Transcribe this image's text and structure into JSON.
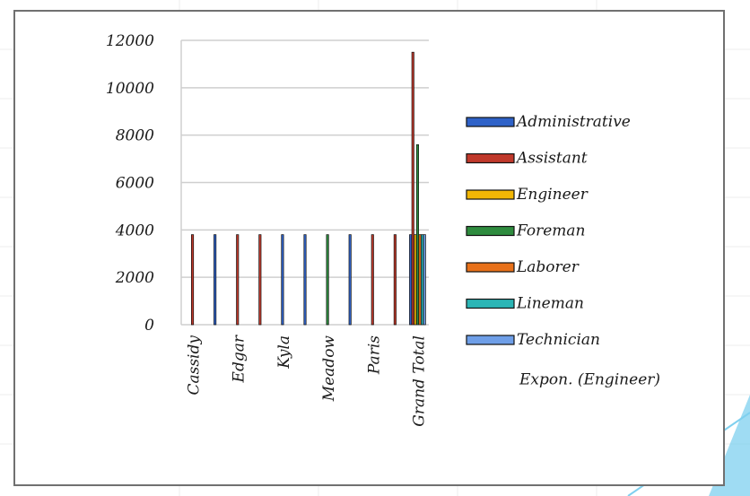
{
  "chart_data": {
    "type": "bar",
    "categories": [
      "Cassidy",
      "",
      "Edgar",
      "",
      "Kyla",
      "",
      "Meadow",
      "",
      "Paris",
      "",
      "Grand Total"
    ],
    "series": [
      {
        "name": "Administrative",
        "color": "#2f62c8",
        "values": [
          null,
          3800,
          null,
          null,
          3800,
          3800,
          null,
          3800,
          null,
          null,
          3800
        ]
      },
      {
        "name": "Assistant",
        "color": "#c0392b",
        "values": [
          3800,
          null,
          3800,
          3800,
          null,
          null,
          null,
          null,
          3800,
          3800,
          11500
        ]
      },
      {
        "name": "Engineer",
        "color": "#f2b705",
        "values": [
          null,
          null,
          null,
          null,
          null,
          null,
          null,
          null,
          null,
          null,
          3800
        ]
      },
      {
        "name": "Foreman",
        "color": "#2e8b3e",
        "values": [
          null,
          null,
          null,
          null,
          null,
          null,
          3800,
          null,
          null,
          null,
          7600
        ]
      },
      {
        "name": "Laborer",
        "color": "#e8711a",
        "values": [
          null,
          null,
          null,
          null,
          null,
          null,
          null,
          null,
          null,
          null,
          3800
        ]
      },
      {
        "name": "Lineman",
        "color": "#2bb5b5",
        "values": [
          null,
          null,
          null,
          null,
          null,
          null,
          null,
          null,
          null,
          null,
          3800
        ]
      },
      {
        "name": "Technician",
        "color": "#6f9fe8",
        "values": [
          null,
          null,
          null,
          null,
          null,
          null,
          null,
          null,
          null,
          null,
          3800
        ]
      }
    ],
    "trendline_label": "Expon. (Engineer)",
    "yticks": [
      "12000",
      "10000",
      "8000",
      "6000",
      "4000",
      "2000",
      "0"
    ],
    "ylim": [
      0,
      12000
    ],
    "grid": true,
    "legend_position": "right"
  }
}
